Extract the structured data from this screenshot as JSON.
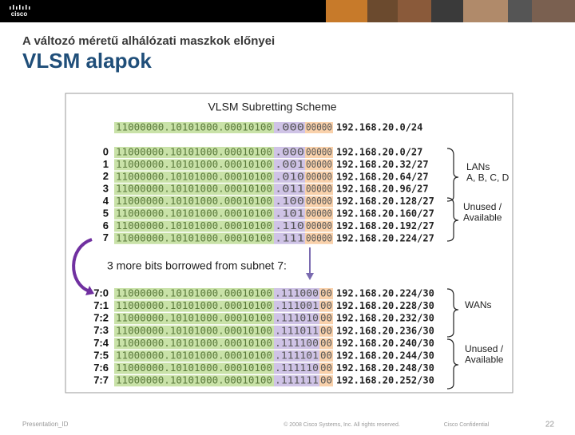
{
  "header": {
    "logo": "cisco",
    "subtitle": "A változó méretű alhálózati maszkok előnyei",
    "title": "VLSM alapok"
  },
  "figure": {
    "title": "VLSM Subretting Scheme",
    "base_row": {
      "network": "11000000.10101000.00010100",
      "subnet": ".000",
      "host": "00000",
      "address": "192.168.20.0/24"
    },
    "rows": [
      {
        "label": "0",
        "network": "11000000.10101000.00010100",
        "subnet": ".000",
        "host": "00000",
        "address": "192.168.20.0/27"
      },
      {
        "label": "1",
        "network": "11000000.10101000.00010100",
        "subnet": ".001",
        "host": "00000",
        "address": "192.168.20.32/27"
      },
      {
        "label": "2",
        "network": "11000000.10101000.00010100",
        "subnet": ".010",
        "host": "00000",
        "address": "192.168.20.64/27"
      },
      {
        "label": "3",
        "network": "11000000.10101000.00010100",
        "subnet": ".011",
        "host": "00000",
        "address": "192.168.20.96/27"
      },
      {
        "label": "4",
        "network": "11000000.10101000.00010100",
        "subnet": ".100",
        "host": "00000",
        "address": "192.168.20.128/27"
      },
      {
        "label": "5",
        "network": "11000000.10101000.00010100",
        "subnet": ".101",
        "host": "00000",
        "address": "192.168.20.160/27"
      },
      {
        "label": "6",
        "network": "11000000.10101000.00010100",
        "subnet": ".110",
        "host": "00000",
        "address": "192.168.20.192/27"
      },
      {
        "label": "7",
        "network": "11000000.10101000.00010100",
        "subnet": ".111",
        "host": "00000",
        "address": "192.168.20.224/27"
      }
    ],
    "note": "3 more bits borrowed from subnet 7:",
    "sub_rows": [
      {
        "label": "7:0",
        "network": "11000000.10101000.00010100",
        "subnet": ".111000",
        "host": "00",
        "address": "192.168.20.224/30"
      },
      {
        "label": "7:1",
        "network": "11000000.10101000.00010100",
        "subnet": ".111001",
        "host": "00",
        "address": "192.168.20.228/30"
      },
      {
        "label": "7:2",
        "network": "11000000.10101000.00010100",
        "subnet": ".111010",
        "host": "00",
        "address": "192.168.20.232/30"
      },
      {
        "label": "7:3",
        "network": "11000000.10101000.00010100",
        "subnet": ".111011",
        "host": "00",
        "address": "192.168.20.236/30"
      },
      {
        "label": "7:4",
        "network": "11000000.10101000.00010100",
        "subnet": ".111100",
        "host": "00",
        "address": "192.168.20.240/30"
      },
      {
        "label": "7:5",
        "network": "11000000.10101000.00010100",
        "subnet": ".111101",
        "host": "00",
        "address": "192.168.20.244/30"
      },
      {
        "label": "7:6",
        "network": "11000000.10101000.00010100",
        "subnet": ".111110",
        "host": "00",
        "address": "192.168.20.248/30"
      },
      {
        "label": "7:7",
        "network": "11000000.10101000.00010100",
        "subnet": ".111111",
        "host": "00",
        "address": "192.168.20.252/30"
      }
    ],
    "groups": [
      {
        "lines": [
          "LANs",
          "A, B, C, D"
        ]
      },
      {
        "lines": [
          "Unused /",
          "Available"
        ]
      },
      {
        "lines": [
          "WANs"
        ]
      },
      {
        "lines": [
          "Unused /",
          "Available"
        ]
      }
    ]
  },
  "footer": {
    "id": "Presentation_ID",
    "copyright": "© 2008 Cisco Systems, Inc. All rights reserved.",
    "confidential": "Cisco Confidential",
    "page": "22"
  }
}
